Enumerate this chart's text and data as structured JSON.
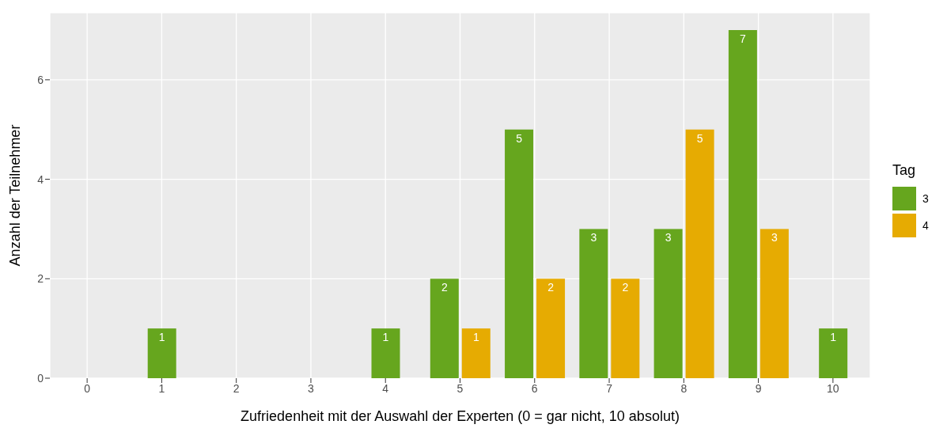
{
  "chart_data": {
    "type": "bar",
    "xlabel": "Zufriedenheit mit der Auswahl der Experten (0 = gar nicht, 10 absolut)",
    "ylabel": "Anzahl der Teilnehmer",
    "legend_title": "Tag",
    "categories": [
      "0",
      "1",
      "2",
      "3",
      "4",
      "5",
      "6",
      "7",
      "8",
      "9",
      "10"
    ],
    "series": [
      {
        "name": "3",
        "color": "#66a61e",
        "values": [
          null,
          1,
          null,
          null,
          1,
          2,
          5,
          3,
          3,
          7,
          1
        ]
      },
      {
        "name": "4",
        "color": "#e6ab02",
        "values": [
          null,
          null,
          null,
          null,
          null,
          1,
          2,
          2,
          5,
          3,
          null
        ]
      }
    ],
    "ylim": [
      0,
      7.35
    ],
    "yticks": [
      0,
      2,
      4,
      6
    ],
    "grid": true,
    "legend": "right",
    "data_labels": true
  }
}
